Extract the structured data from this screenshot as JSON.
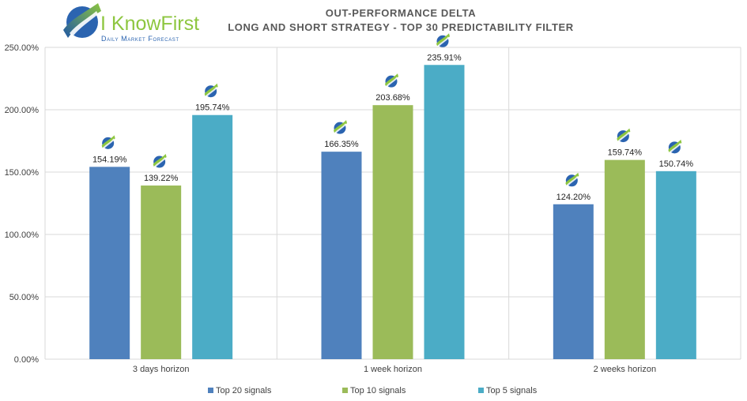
{
  "logo": {
    "name": "I KnowFirst",
    "tagline": "Daily Market Forecast"
  },
  "colors": {
    "series": [
      "#4f81bd",
      "#9bbb59",
      "#4bacc6"
    ],
    "logo_green": "#8dc63f",
    "logo_blue": "#2b64b0",
    "grid": "#d9d9d9"
  },
  "chart_data": {
    "type": "bar",
    "title": [
      "OUT-PERFORMANCE DELTA",
      "LONG AND SHORT STRATEGY - TOP 30 PREDICTABILITY FILTER"
    ],
    "xlabel": "",
    "ylabel": "",
    "categories": [
      "3 days horizon",
      "1 week horizon",
      "2 weeks horizon"
    ],
    "series": [
      {
        "name": "Top 20 signals",
        "values": [
          154.19,
          166.35,
          124.2
        ],
        "labels": [
          "154.19%",
          "166.35%",
          "124.20%"
        ]
      },
      {
        "name": "Top 10 signals",
        "values": [
          139.22,
          203.68,
          159.74
        ],
        "labels": [
          "139.22%",
          "203.68%",
          "159.74%"
        ]
      },
      {
        "name": "Top 5 signals",
        "values": [
          195.74,
          235.91,
          150.74
        ],
        "labels": [
          "195.74%",
          "235.91%",
          "150.74%"
        ]
      }
    ],
    "ylim": [
      0,
      250
    ],
    "yticks": [
      0,
      50,
      100,
      150,
      200,
      250
    ],
    "ytick_labels": [
      "0.00%",
      "50.00%",
      "100.00%",
      "150.00%",
      "200.00%",
      "250.00%"
    ],
    "grid": true,
    "legend": "bottom",
    "marker_icon": "knowfirst-logo-icon"
  }
}
